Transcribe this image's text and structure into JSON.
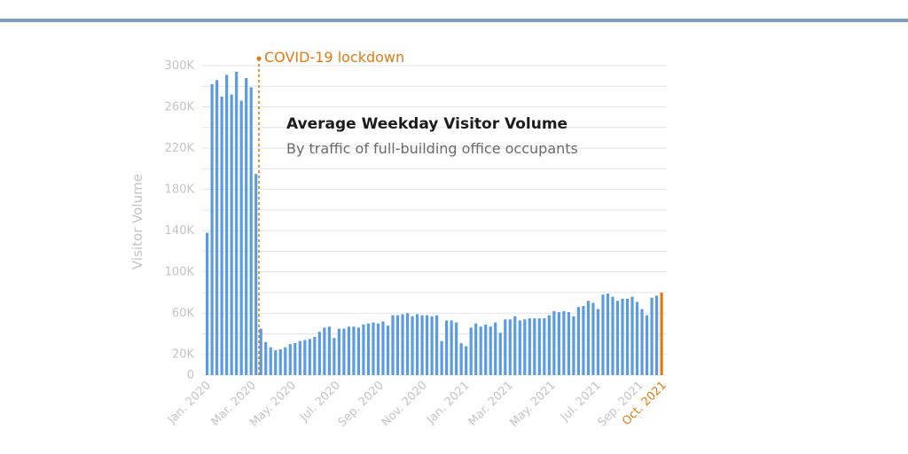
{
  "chart_data": {
    "type": "bar",
    "title": "Average Weekday Visitor Volume",
    "subtitle": "By traffic of full-building office occupants",
    "ylabel": "Visitor Volume",
    "xlabel": "",
    "ylim": [
      0,
      300000
    ],
    "yticks": [
      "0",
      "20K",
      "60K",
      "100K",
      "140K",
      "180K",
      "220K",
      "260K",
      "300K"
    ],
    "ytick_values": [
      0,
      20000,
      60000,
      100000,
      140000,
      180000,
      220000,
      260000,
      300000
    ],
    "xtick_labels": [
      "Jan. 2020",
      "Mar. 2020",
      "May. 2020",
      "Jul. 2020",
      "Sep. 2020",
      "Nov. 2020",
      "Jan. 2021",
      "Mar. 2021",
      "May. 2021",
      "Jul. 2021",
      "Sep. 2021",
      "Oct. 2021"
    ],
    "annotation": {
      "label": "COVID-19 lockdown",
      "period": "Mar. 2020"
    },
    "grid": true,
    "colors": {
      "bars": "#5b9be3",
      "highlight": "#e07b12",
      "grid": "#e4e4e4",
      "axis_text": "#c4c4c4"
    },
    "values": [
      138000,
      282000,
      286000,
      270000,
      291000,
      272000,
      294000,
      266000,
      288000,
      279000,
      195000,
      45000,
      32000,
      27000,
      24000,
      25000,
      27000,
      30000,
      31000,
      33000,
      34000,
      35000,
      37000,
      42000,
      46000,
      47000,
      36000,
      45000,
      45000,
      47000,
      47000,
      46000,
      49000,
      50000,
      51000,
      50000,
      52000,
      48000,
      58000,
      58000,
      59000,
      60000,
      57000,
      59000,
      58000,
      58000,
      57000,
      58000,
      33000,
      53000,
      53000,
      51000,
      31000,
      28000,
      46000,
      50000,
      47000,
      49000,
      47000,
      51000,
      41000,
      54000,
      54000,
      57000,
      53000,
      54000,
      55000,
      55000,
      55000,
      55000,
      58000,
      62000,
      61000,
      62000,
      61000,
      57000,
      66000,
      67000,
      72000,
      70000,
      64000,
      78000,
      79000,
      76000,
      72000,
      74000,
      74000,
      76000,
      71000,
      64000,
      58000,
      75000,
      77000,
      80000
    ]
  }
}
